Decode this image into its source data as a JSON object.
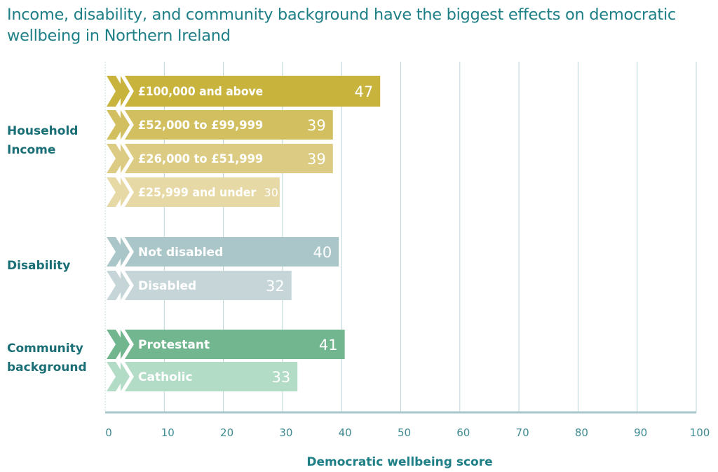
{
  "chart_data": {
    "type": "bar",
    "orientation": "horizontal",
    "title": "Income, disability, and community background have the biggest effects on democratic wellbeing in Northern Ireland",
    "xlabel": "Democratic wellbeing score",
    "ylabel": "",
    "xlim": [
      0,
      100
    ],
    "xticks": [
      "0",
      "10",
      "20",
      "30",
      "40",
      "50",
      "60",
      "70",
      "80",
      "90",
      "100"
    ],
    "grid": true,
    "groups": [
      {
        "label": "Household Income",
        "label_lines": [
          "Household",
          "Income"
        ],
        "bars": [
          {
            "category": "£100,000 and above",
            "value": 47,
            "value_label": "47",
            "color": "#c8b33d"
          },
          {
            "category": "£52,000 to £99,999",
            "value": 39,
            "value_label": "39",
            "color": "#d2c060"
          },
          {
            "category": "£26,000 to £51,999",
            "value": 39,
            "value_label": "39",
            "color": "#dccb82"
          },
          {
            "category": "£25,999 and under",
            "value": 30,
            "value_label": "30",
            "color": "#e7d9a6"
          }
        ]
      },
      {
        "label": "Disability",
        "label_lines": [
          "Disability"
        ],
        "bars": [
          {
            "category": "Not disabled",
            "value": 40,
            "value_label": "40",
            "color": "#abc6c9"
          },
          {
            "category": "Disabled",
            "value": 32,
            "value_label": "32",
            "color": "#c6d6d8"
          }
        ]
      },
      {
        "label": "Community background",
        "label_lines": [
          "Community",
          "background"
        ],
        "bars": [
          {
            "category": "Protestant",
            "value": 41,
            "value_label": "41",
            "color": "#72b68f"
          },
          {
            "category": "Catholic",
            "value": 33,
            "value_label": "33",
            "color": "#b3dcc6"
          }
        ]
      }
    ],
    "colors": {
      "title": "#1f7f86",
      "group_label": "#1a6f76",
      "tick_label": "#3f8a90",
      "gridline": "#b9d3d7",
      "axis": "#a9c6ca",
      "bar_text": "#ffffff"
    }
  }
}
